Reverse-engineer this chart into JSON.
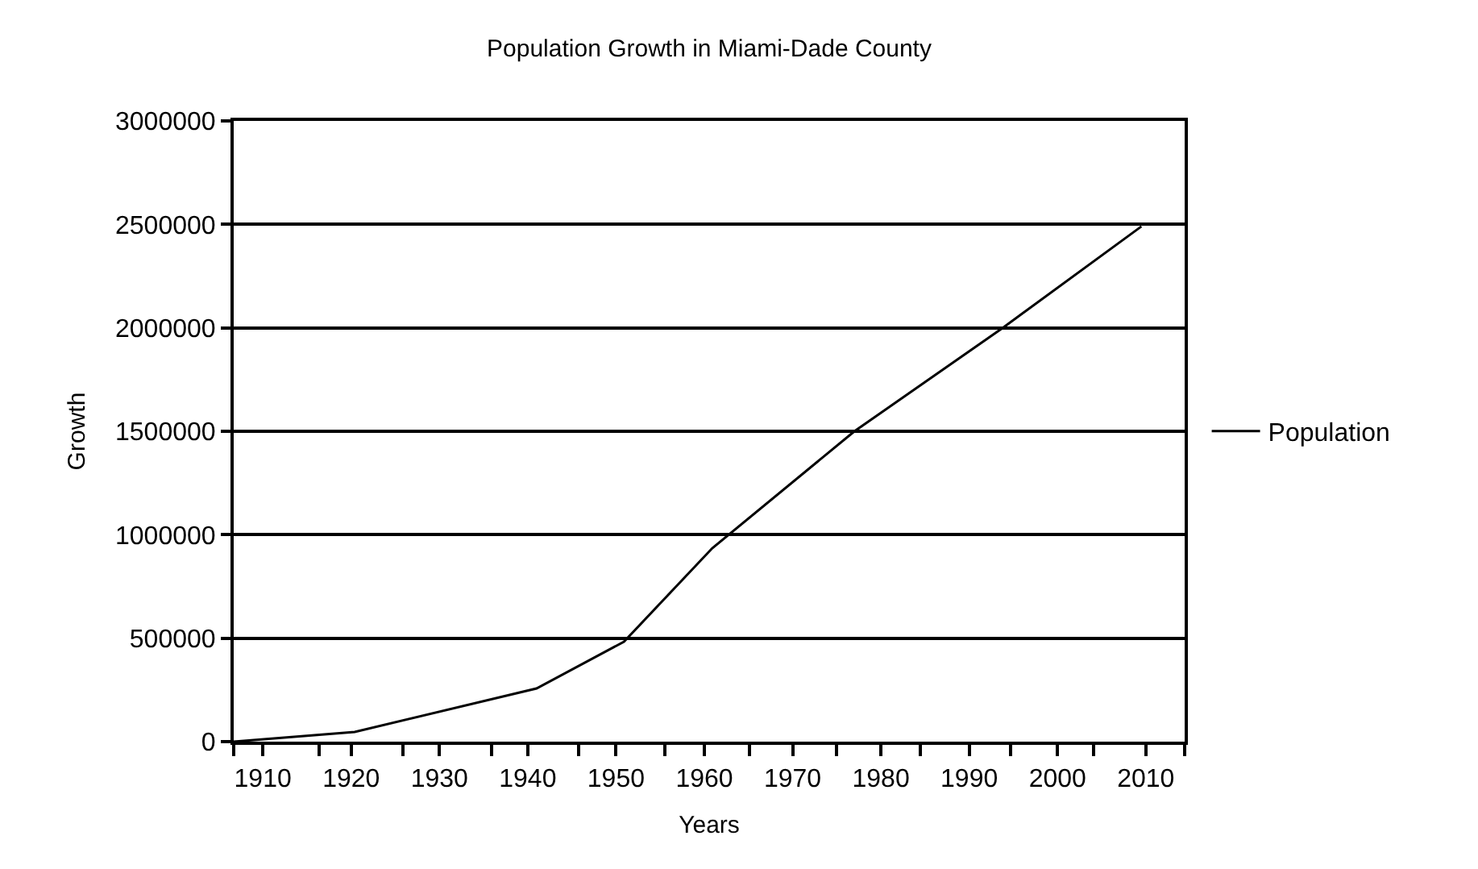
{
  "chart_data": {
    "type": "line",
    "title": "Population Growth in Miami-Dade County",
    "xlabel": "Years",
    "ylabel": "Growth",
    "x": [
      1906.7,
      1920.4,
      1941,
      1950.9,
      1960.9,
      1977,
      1993.8,
      2009.5
    ],
    "series": [
      {
        "name": "Population",
        "color": "#000000",
        "values": [
          0,
          47000,
          257000,
          483000,
          935000,
          1500000,
          2000000,
          2490000
        ]
      }
    ],
    "xlim": [
      1906.7,
      2014.4
    ],
    "xticks": [
      {
        "value": 1906.7,
        "label": null
      },
      {
        "value": 1910,
        "label": "1910"
      },
      {
        "value": 1916.4,
        "label": null
      },
      {
        "value": 1920,
        "label": "1920"
      },
      {
        "value": 1925.9,
        "label": null
      },
      {
        "value": 1930,
        "label": "1930"
      },
      {
        "value": 1935.9,
        "label": null
      },
      {
        "value": 1940,
        "label": "1940"
      },
      {
        "value": 1945.8,
        "label": null
      },
      {
        "value": 1950,
        "label": "1950"
      },
      {
        "value": 1955.5,
        "label": null
      },
      {
        "value": 1960,
        "label": "1960"
      },
      {
        "value": 1965.1,
        "label": null
      },
      {
        "value": 1970,
        "label": "1970"
      },
      {
        "value": 1975,
        "label": null
      },
      {
        "value": 1980,
        "label": "1980"
      },
      {
        "value": 1984.5,
        "label": null
      },
      {
        "value": 1990,
        "label": "1990"
      },
      {
        "value": 1994.7,
        "label": null
      },
      {
        "value": 2000,
        "label": "2000"
      },
      {
        "value": 2004.1,
        "label": null
      },
      {
        "value": 2010,
        "label": "2010"
      },
      {
        "value": 2014.4,
        "label": null
      }
    ],
    "ylim": [
      0,
      3000000
    ],
    "yticks": [
      0,
      500000,
      1000000,
      1500000,
      2000000,
      2500000,
      3000000
    ],
    "grid": "y",
    "legend": "right",
    "marker": "none",
    "line_style": "solid"
  }
}
